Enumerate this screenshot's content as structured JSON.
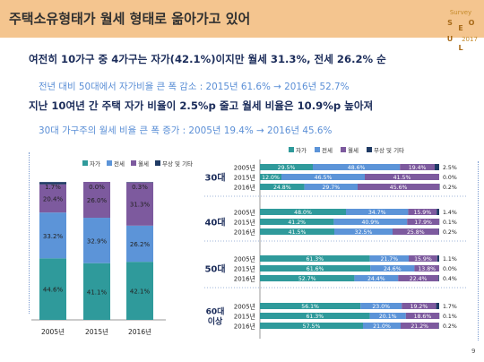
{
  "header": {
    "title": "주택소유형태가 월세 형태로 옮아가고 있어"
  },
  "logo": {
    "top": "Survey",
    "letters": [
      "S",
      "E",
      "O",
      "U",
      "L"
    ],
    "year": "2017"
  },
  "bullets": [
    {
      "text": "여전히 10가구 중 4가구는 자가(42.1%)이지만 월세 31.3%, 전세 26.2% 순"
    },
    {
      "text": "전년 대비 50대에서 자가비율 큰 폭 감소 : 2015년 61.6% → 2016년 52.7%"
    },
    {
      "text": "지난 10여년 간 주택 자가 비율이 2.5%p 줄고 월세 비율은 10.9%p 높아져"
    },
    {
      "text": "30대 가구주의 월세 비율 큰 폭 증가 : 2005년 19.4% → 2016년 45.6%"
    }
  ],
  "page_number": "9",
  "colors": {
    "own": "#2f9a9b",
    "jeonse": "#5c94d8",
    "monthly": "#7d5a9e",
    "free": "#1f3a64"
  },
  "chart_data": [
    {
      "type": "bar",
      "stacked": true,
      "orientation": "vertical",
      "legend": [
        "자가",
        "전세",
        "월세",
        "무상 및 기타"
      ],
      "legend_position": "top",
      "categories": [
        "2005년",
        "2015년",
        "2016년"
      ],
      "series": [
        {
          "name": "자가",
          "values": [
            44.6,
            41.1,
            42.1
          ],
          "labels": [
            "44.6%",
            "41.1%",
            "42.1%"
          ]
        },
        {
          "name": "전세",
          "values": [
            33.2,
            32.9,
            26.2
          ],
          "labels": [
            "33.2%",
            "32.9%",
            "26.2%"
          ]
        },
        {
          "name": "월세",
          "values": [
            20.4,
            26.0,
            31.3
          ],
          "labels": [
            "20.4%",
            "26.0%",
            "31.3%"
          ]
        },
        {
          "name": "무상 및 기타",
          "values": [
            1.7,
            0.0,
            0.3
          ],
          "labels": [
            "1.7%",
            "0.0%",
            "0.3%"
          ]
        }
      ],
      "ylim": [
        0,
        100
      ]
    },
    {
      "type": "bar",
      "stacked": true,
      "orientation": "horizontal",
      "legend": [
        "자가",
        "전세",
        "월세",
        "무상 및 기타"
      ],
      "legend_position": "top",
      "groups": [
        {
          "label": "30대",
          "rows": [
            {
              "year": "2005년",
              "values": [
                29.5,
                48.6,
                19.4,
                2.5
              ],
              "labels": [
                "29.5%",
                "48.6%",
                "19.4%",
                "2.5%"
              ]
            },
            {
              "year": "2015년",
              "values": [
                12.0,
                46.5,
                41.5,
                0.0
              ],
              "labels": [
                "12.0%",
                "46.5%",
                "41.5%",
                "0.0%"
              ]
            },
            {
              "year": "2016년",
              "values": [
                24.8,
                29.7,
                45.6,
                0.2
              ],
              "labels": [
                "24.8%",
                "29.7%",
                "45.6%",
                "0.2%"
              ]
            }
          ]
        },
        {
          "label": "40대",
          "rows": [
            {
              "year": "2005년",
              "values": [
                48.0,
                34.7,
                15.9,
                1.4
              ],
              "labels": [
                "48.0%",
                "34.7%",
                "15.9%",
                "1.4%"
              ]
            },
            {
              "year": "2015년",
              "values": [
                41.2,
                40.9,
                17.9,
                0.1
              ],
              "labels": [
                "41.2%",
                "40.9%",
                "17.9%",
                "0.1%"
              ]
            },
            {
              "year": "2016년",
              "values": [
                41.5,
                32.5,
                25.8,
                0.2
              ],
              "labels": [
                "41.5%",
                "32.5%",
                "25.8%",
                "0.2%"
              ]
            }
          ]
        },
        {
          "label": "50대",
          "rows": [
            {
              "year": "2005년",
              "values": [
                61.3,
                21.7,
                15.9,
                1.1
              ],
              "labels": [
                "61.3%",
                "21.7%",
                "15.9%",
                "1.1%"
              ]
            },
            {
              "year": "2015년",
              "values": [
                61.6,
                24.6,
                13.8,
                0.0
              ],
              "labels": [
                "61.6%",
                "24.6%",
                "13.8%",
                "0.0%"
              ]
            },
            {
              "year": "2016년",
              "values": [
                52.7,
                24.4,
                22.4,
                0.4
              ],
              "labels": [
                "52.7%",
                "24.4%",
                "22.4%",
                "0.4%"
              ]
            }
          ]
        },
        {
          "label": "60대 이상",
          "rows": [
            {
              "year": "2005년",
              "values": [
                56.1,
                23.0,
                19.2,
                1.7
              ],
              "labels": [
                "56.1%",
                "23.0%",
                "19.2%",
                "1.7%"
              ]
            },
            {
              "year": "2015년",
              "values": [
                61.3,
                20.1,
                18.6,
                0.1
              ],
              "labels": [
                "61.3%",
                "20.1%",
                "18.6%",
                "0.1%"
              ]
            },
            {
              "year": "2016년",
              "values": [
                57.5,
                21.0,
                21.2,
                0.2
              ],
              "labels": [
                "57.5%",
                "21.0%",
                "21.2%",
                "0.2%"
              ]
            }
          ]
        }
      ],
      "xlim": [
        0,
        100
      ]
    }
  ]
}
